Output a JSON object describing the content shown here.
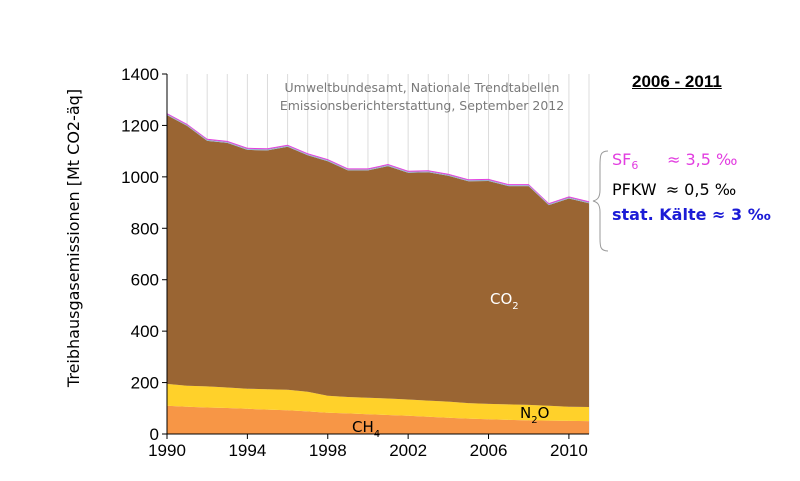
{
  "chart_data": {
    "type": "area",
    "stacked": true,
    "ylabel": "Treibhausgasemissionen [Mt CO2-äq]",
    "xlabel": "",
    "ylim": [
      0,
      1400
    ],
    "xlim": [
      1990,
      2011
    ],
    "y_ticks": [
      "0",
      "200",
      "400",
      "600",
      "800",
      "1000",
      "1200",
      "1400"
    ],
    "x_ticks": [
      "1990",
      "1994",
      "1998",
      "2002",
      "2006",
      "2010"
    ],
    "grid": "vertical",
    "source_line1": "Umweltbundesamt, Nationale Trendtabellen",
    "source_line2": "Emissionsberichterstattung, September 2012",
    "x": [
      1990,
      1991,
      1992,
      1993,
      1994,
      1995,
      1996,
      1997,
      1998,
      1999,
      2000,
      2001,
      2002,
      2003,
      2004,
      2005,
      2006,
      2007,
      2008,
      2009,
      2010,
      2011
    ],
    "series": [
      {
        "name": "CH4",
        "label_main": "CH",
        "label_sub": "4",
        "color": "#f79646",
        "values": [
          110,
          106,
          103,
          101,
          98,
          95,
          92,
          88,
          83,
          80,
          77,
          74,
          71,
          67,
          63,
          60,
          57,
          55,
          53,
          52,
          51,
          50
        ]
      },
      {
        "name": "N2O",
        "label_main": "N",
        "label_sub": "2",
        "label_tail": "O",
        "color": "#ffd12a",
        "values": [
          85,
          82,
          82,
          80,
          78,
          79,
          80,
          76,
          66,
          64,
          64,
          64,
          63,
          63,
          63,
          60,
          60,
          60,
          60,
          58,
          55,
          55
        ]
      },
      {
        "name": "CO2",
        "label_main": "CO",
        "label_sub": "2",
        "color": "#9a6533",
        "values": [
          1045,
          1010,
          955,
          951,
          929,
          929,
          945,
          920,
          912,
          881,
          884,
          904,
          882,
          888,
          878,
          863,
          867,
          849,
          851,
          780,
          810,
          792
        ]
      },
      {
        "name": "stat. Kälte",
        "color": "#94b8e0",
        "values": [
          3,
          3,
          3,
          3,
          3,
          3,
          3,
          3,
          3,
          3,
          3,
          3,
          3,
          3,
          3,
          3,
          3,
          3,
          3,
          3,
          3,
          3
        ]
      },
      {
        "name": "PFKW",
        "color": "#7f7f7f",
        "values": [
          1,
          1,
          1,
          1,
          1,
          1,
          1,
          1,
          1,
          1,
          1,
          1,
          1,
          1,
          1,
          1,
          1,
          1,
          1,
          1,
          1,
          1
        ]
      },
      {
        "name": "SF6",
        "color": "#e23ee0",
        "values": [
          4,
          4,
          4,
          4,
          4,
          4,
          4,
          4,
          4,
          4,
          4,
          4,
          4,
          4,
          4,
          4,
          4,
          4,
          4,
          4,
          4,
          4
        ]
      }
    ]
  },
  "annotations": {
    "period": "2006 - 2011",
    "sf6": {
      "main": "SF",
      "sub": "6",
      "value": "≈ 3,5 ‰",
      "color": "#e23ee0"
    },
    "pfkw": {
      "label": "PFKW",
      "value": "≈ 0,5 ‰",
      "color": "#000000"
    },
    "stat_kaelte": {
      "label": "stat. Kälte ≈ 3 ‰",
      "color": "#1b1bd6"
    }
  }
}
